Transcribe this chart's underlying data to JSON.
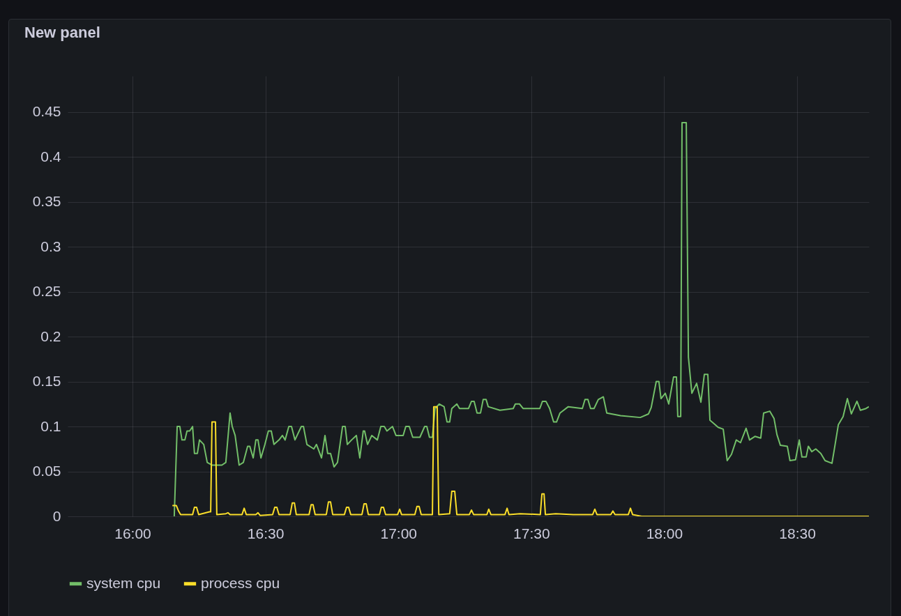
{
  "chart_data": {
    "type": "line",
    "title": "New panel",
    "xlim": [
      15.756,
      18.77
    ],
    "xticks": [
      {
        "value": 16,
        "label": "16:00"
      },
      {
        "value": 16.5,
        "label": "16:30"
      },
      {
        "value": 17,
        "label": "17:00"
      },
      {
        "value": 17.5,
        "label": "17:30"
      },
      {
        "value": 18,
        "label": "18:00"
      },
      {
        "value": 18.5,
        "label": "18:30"
      }
    ],
    "ylim": [
      0,
      0.49
    ],
    "yticks": [
      0,
      0.05,
      0.1,
      0.15,
      0.2,
      0.25,
      0.3,
      0.35,
      0.4,
      0.45
    ],
    "grid": true,
    "legend": "bottom left",
    "line_style": "solid",
    "series": [
      {
        "name": "system cpu",
        "color": "#73bf69",
        "x": [
          16.157,
          16.168,
          16.178,
          16.186,
          16.197,
          16.205,
          16.215,
          16.226,
          16.233,
          16.244,
          16.252,
          16.268,
          16.281,
          16.299,
          16.336,
          16.351,
          16.367,
          16.375,
          16.386,
          16.401,
          16.417,
          16.433,
          16.441,
          16.454,
          16.464,
          16.472,
          16.483,
          16.498,
          16.511,
          16.522,
          16.532,
          16.551,
          16.564,
          16.574,
          16.588,
          16.598,
          16.611,
          16.635,
          16.643,
          16.656,
          16.682,
          16.692,
          16.711,
          16.724,
          16.734,
          16.745,
          16.758,
          16.771,
          16.79,
          16.8,
          16.808,
          16.824,
          16.842,
          16.855,
          16.868,
          16.873,
          16.884,
          16.9,
          16.921,
          16.934,
          16.947,
          16.957,
          16.978,
          16.991,
          17.018,
          17.028,
          17.041,
          17.054,
          17.081,
          17.099,
          17.107,
          17.117,
          17.128,
          17.138,
          17.154,
          17.172,
          17.183,
          17.193,
          17.201,
          17.22,
          17.23,
          17.264,
          17.275,
          17.285,
          17.296,
          17.309,
          17.319,
          17.33,
          17.338,
          17.382,
          17.432,
          17.44,
          17.456,
          17.469,
          17.532,
          17.542,
          17.555,
          17.569,
          17.584,
          17.595,
          17.608,
          17.639,
          17.692,
          17.702,
          17.713,
          17.723,
          17.736,
          17.752,
          17.771,
          17.784,
          17.836,
          17.91,
          17.941,
          17.951,
          17.97,
          17.98,
          17.988,
          18.004,
          18.017,
          18.035,
          18.046,
          18.051,
          18.062,
          18.067,
          18.083,
          18.091,
          18.104,
          18.122,
          18.138,
          18.151,
          18.164,
          18.172,
          18.188,
          18.203,
          18.222,
          18.237,
          18.253,
          18.271,
          18.287,
          18.308,
          18.321,
          18.342,
          18.363,
          18.374,
          18.397,
          18.413,
          18.424,
          18.437,
          18.463,
          18.473,
          18.494,
          18.508,
          18.518,
          18.534,
          18.542,
          18.555,
          18.57,
          18.589,
          18.605,
          18.631,
          18.639,
          18.655,
          18.673,
          18.689,
          18.704,
          18.725,
          18.738,
          18.759,
          18.77
        ],
        "values": [
          0,
          0.1,
          0.1,
          0.085,
          0.085,
          0.095,
          0.095,
          0.1,
          0.07,
          0.07,
          0.085,
          0.08,
          0.06,
          0.057,
          0.057,
          0.06,
          0.115,
          0.1,
          0.09,
          0.057,
          0.06,
          0.078,
          0.078,
          0.065,
          0.085,
          0.085,
          0.065,
          0.08,
          0.095,
          0.095,
          0.08,
          0.085,
          0.09,
          0.085,
          0.1,
          0.1,
          0.085,
          0.1,
          0.1,
          0.08,
          0.075,
          0.08,
          0.065,
          0.09,
          0.07,
          0.07,
          0.055,
          0.06,
          0.1,
          0.1,
          0.08,
          0.085,
          0.09,
          0.065,
          0.095,
          0.095,
          0.08,
          0.09,
          0.085,
          0.1,
          0.1,
          0.095,
          0.1,
          0.09,
          0.09,
          0.1,
          0.1,
          0.088,
          0.088,
          0.1,
          0.1,
          0.088,
          0.088,
          0.12,
          0.125,
          0.122,
          0.105,
          0.105,
          0.12,
          0.125,
          0.12,
          0.12,
          0.128,
          0.128,
          0.115,
          0.115,
          0.13,
          0.13,
          0.122,
          0.118,
          0.12,
          0.125,
          0.125,
          0.12,
          0.12,
          0.128,
          0.128,
          0.12,
          0.105,
          0.105,
          0.115,
          0.122,
          0.12,
          0.13,
          0.13,
          0.12,
          0.12,
          0.13,
          0.133,
          0.115,
          0.112,
          0.11,
          0.114,
          0.121,
          0.15,
          0.15,
          0.131,
          0.137,
          0.125,
          0.155,
          0.155,
          0.111,
          0.111,
          0.438,
          0.438,
          0.177,
          0.137,
          0.148,
          0.127,
          0.158,
          0.158,
          0.107,
          0.103,
          0.099,
          0.097,
          0.062,
          0.069,
          0.085,
          0.082,
          0.098,
          0.085,
          0.089,
          0.087,
          0.115,
          0.117,
          0.109,
          0.091,
          0.079,
          0.078,
          0.062,
          0.063,
          0.085,
          0.066,
          0.066,
          0.078,
          0.072,
          0.075,
          0.07,
          0.062,
          0.059,
          0.073,
          0.102,
          0.111,
          0.131,
          0.114,
          0.128,
          0.118,
          0.12,
          0.122
        ]
      },
      {
        "name": "process cpu",
        "color": "#fade2a",
        "x": [
          16.15,
          16.165,
          16.173,
          16.181,
          16.226,
          16.233,
          16.241,
          16.249,
          16.289,
          16.294,
          16.299,
          16.312,
          16.317,
          16.351,
          16.359,
          16.367,
          16.412,
          16.42,
          16.428,
          16.464,
          16.472,
          16.48,
          16.527,
          16.535,
          16.543,
          16.551,
          16.593,
          16.601,
          16.609,
          16.616,
          16.664,
          16.672,
          16.679,
          16.687,
          16.729,
          16.737,
          16.745,
          16.753,
          16.797,
          16.805,
          16.813,
          16.821,
          16.863,
          16.871,
          16.879,
          16.887,
          16.929,
          16.936,
          16.944,
          16.952,
          16.997,
          17.005,
          17.012,
          17.062,
          17.07,
          17.078,
          17.086,
          17.128,
          17.133,
          17.146,
          17.152,
          17.193,
          17.201,
          17.212,
          17.22,
          17.267,
          17.275,
          17.283,
          17.333,
          17.34,
          17.348,
          17.401,
          17.409,
          17.416,
          17.458,
          17.534,
          17.54,
          17.548,
          17.553,
          17.592,
          17.658,
          17.731,
          17.739,
          17.747,
          17.799,
          17.807,
          17.815,
          17.865,
          17.873,
          17.881,
          17.915,
          18.77
        ],
        "values": [
          0.012,
          0.012,
          0.006,
          0.002,
          0.002,
          0.01,
          0.01,
          0.002,
          0.005,
          0.005,
          0.105,
          0.105,
          0.002,
          0.003,
          0.004,
          0.002,
          0.002,
          0.009,
          0.002,
          0.002,
          0.004,
          0.001,
          0.002,
          0.01,
          0.01,
          0.002,
          0.002,
          0.015,
          0.015,
          0.002,
          0.002,
          0.013,
          0.013,
          0.002,
          0.002,
          0.016,
          0.016,
          0.002,
          0.002,
          0.01,
          0.01,
          0.002,
          0.002,
          0.014,
          0.014,
          0.002,
          0.002,
          0.01,
          0.01,
          0.002,
          0.002,
          0.008,
          0.002,
          0.002,
          0.011,
          0.011,
          0.002,
          0.002,
          0.122,
          0.122,
          0.002,
          0.003,
          0.028,
          0.028,
          0.002,
          0.002,
          0.007,
          0.002,
          0.002,
          0.008,
          0.002,
          0.002,
          0.009,
          0.002,
          0.003,
          0.002,
          0.025,
          0.025,
          0.002,
          0.003,
          0.002,
          0.002,
          0.008,
          0.002,
          0.002,
          0.006,
          0.002,
          0.002,
          0.009,
          0.002,
          0,
          0
        ]
      }
    ]
  }
}
